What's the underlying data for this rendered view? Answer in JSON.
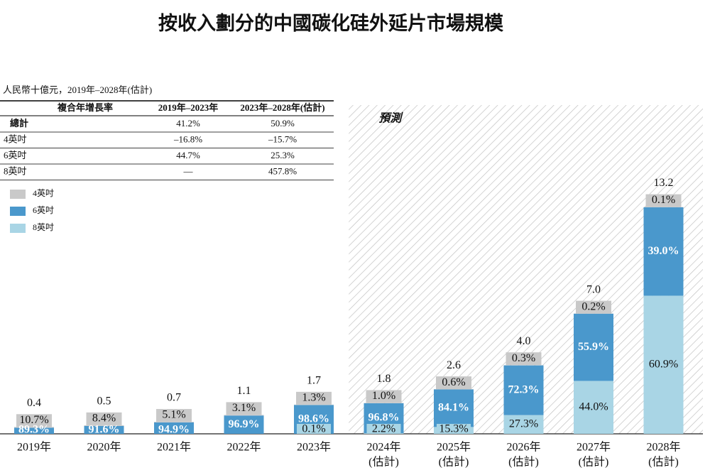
{
  "chart_data": {
    "type": "stacked-percent-bar",
    "title": "按收入劃分的中國碳化硅外延片市場規模",
    "unit_note": "人民幣十億元，2019年–2028年(估計)",
    "forecast_label": "預測",
    "table": {
      "columns": [
        "複合年增長率",
        "2019年–2023年",
        "2023年–2028年(估計)"
      ],
      "rows": [
        [
          "總計",
          "41.2%",
          "50.9%"
        ],
        [
          "4英吋",
          "–16.8%",
          "–15.7%"
        ],
        [
          "6英吋",
          "44.7%",
          "25.3%"
        ],
        [
          "8英吋",
          "—",
          "457.8%"
        ]
      ]
    },
    "categories": [
      [
        "2019年"
      ],
      [
        "2020年"
      ],
      [
        "2021年"
      ],
      [
        "2022年"
      ],
      [
        "2023年"
      ],
      [
        "2024年",
        "(估計)"
      ],
      [
        "2025年",
        "(估計)"
      ],
      [
        "2026年",
        "(估計)"
      ],
      [
        "2027年",
        "(估計)"
      ],
      [
        "2028年",
        "(估計)"
      ]
    ],
    "forecast_from": 5,
    "totals": {
      "values": [
        0.4,
        0.5,
        0.7,
        1.1,
        1.7,
        1.8,
        2.6,
        4.0,
        7.0,
        13.2
      ],
      "value_labels": [
        "0.4",
        "0.5",
        "0.7",
        "1.1",
        "1.7",
        "1.8",
        "2.6",
        "4.0",
        "7.0",
        "13.2"
      ]
    },
    "series": [
      {
        "name": "4英吋",
        "color": "#c9c9c9",
        "values": [
          10.7,
          8.4,
          5.1,
          3.1,
          1.3,
          1.0,
          0.6,
          0.3,
          0.2,
          0.1
        ],
        "value_labels": [
          "10.7%",
          "8.4%",
          "5.1%",
          "3.1%",
          "1.3%",
          "1.0%",
          "0.6%",
          "0.3%",
          "0.2%",
          "0.1%"
        ]
      },
      {
        "name": "6英吋",
        "color": "#4a98cc",
        "values": [
          89.3,
          91.6,
          94.9,
          96.9,
          98.6,
          96.8,
          84.1,
          72.3,
          55.9,
          39.0
        ],
        "value_labels": [
          "89.3%",
          "91.6%",
          "94.9%",
          "96.9%",
          "98.6%",
          "96.8%",
          "84.1%",
          "72.3%",
          "55.9%",
          "39.0%"
        ]
      },
      {
        "name": "8英吋",
        "color": "#a9d5e5",
        "values": [
          null,
          null,
          null,
          null,
          0.1,
          2.2,
          15.3,
          27.3,
          44.0,
          60.9
        ],
        "value_labels": [
          null,
          null,
          null,
          null,
          "0.1%",
          "2.2%",
          "15.3%",
          "27.3%",
          "44.0%",
          "60.9%"
        ]
      }
    ]
  }
}
